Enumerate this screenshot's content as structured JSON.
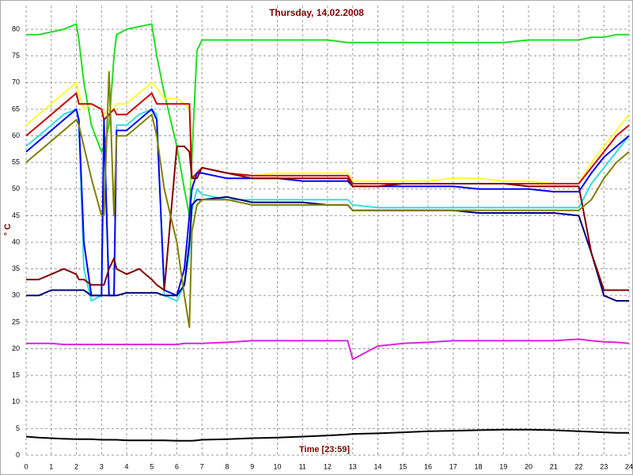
{
  "chart_data": {
    "type": "line",
    "title": "Thursday, 14.02.2008",
    "x_label": "Time [23:59]",
    "y_label": "° C",
    "x": [
      0,
      0.5,
      1,
      1.5,
      2,
      2.1,
      2.3,
      2.6,
      3,
      3.1,
      3.3,
      3.5,
      3.6,
      4,
      4.5,
      5,
      5.2,
      5.5,
      6,
      6.3,
      6.5,
      6.6,
      6.8,
      7,
      8,
      9,
      10,
      11,
      12,
      12.8,
      13,
      14,
      15,
      16,
      17,
      18,
      19,
      20,
      21,
      22,
      22.5,
      23,
      23.5,
      24
    ],
    "series": [
      {
        "color": "#22dd22",
        "values": [
          79,
          79,
          79.5,
          80,
          81,
          78,
          70,
          62,
          57,
          58,
          62,
          75,
          79,
          80,
          80.5,
          81,
          75,
          68,
          58,
          50,
          45,
          56,
          76,
          78,
          78,
          78,
          78,
          78,
          78,
          77.5,
          77.5,
          77.5,
          77.5,
          77.5,
          77.5,
          77.5,
          77.5,
          78,
          78,
          78,
          78.5,
          78.5,
          79,
          79
        ]
      },
      {
        "color": "#ffff33",
        "values": [
          62,
          64,
          66,
          68,
          70,
          68,
          65,
          66,
          65,
          64,
          65,
          65,
          66,
          66,
          68,
          70,
          69,
          67,
          67,
          66,
          65,
          50,
          53,
          54,
          53,
          52.5,
          53,
          53,
          53,
          53,
          51.5,
          51.5,
          51.5,
          51.5,
          52,
          52,
          51.5,
          51.5,
          51,
          51,
          55,
          58,
          61,
          64
        ]
      },
      {
        "color": "#cc0000",
        "values": [
          60,
          62,
          64,
          66,
          68,
          66,
          66,
          66,
          65,
          63,
          64,
          65,
          64,
          64,
          66,
          68,
          66,
          66,
          66,
          66,
          66,
          52,
          53,
          54,
          53,
          52.5,
          52.5,
          52.5,
          52.5,
          52.5,
          51,
          51,
          51,
          51,
          51,
          51,
          51,
          51,
          51,
          51,
          54,
          57,
          60,
          62
        ]
      },
      {
        "color": "#33dddd",
        "values": [
          58,
          60,
          62,
          64,
          65,
          62,
          35,
          29,
          30,
          60,
          30,
          30,
          62,
          62,
          64,
          65,
          64,
          30,
          29,
          32,
          38,
          46,
          50,
          49,
          48,
          48,
          48,
          48,
          48,
          48,
          47,
          46.5,
          46.5,
          46.5,
          46.5,
          46.5,
          46.5,
          46.5,
          46.5,
          46.5,
          51,
          54,
          57,
          60
        ]
      },
      {
        "color": "#0000ff",
        "values": [
          57,
          59,
          61,
          63,
          65,
          63,
          40,
          30,
          30,
          63,
          30,
          30,
          61,
          61,
          63,
          65,
          63,
          31,
          30,
          35,
          45,
          50,
          53,
          53,
          52,
          52,
          52,
          51.5,
          51.5,
          51.5,
          50.5,
          50.5,
          50.5,
          50.5,
          50.5,
          50,
          50,
          50,
          49.5,
          49.5,
          53,
          56,
          58,
          60
        ]
      },
      {
        "color": "#000080",
        "values": [
          30,
          30,
          31,
          31,
          31,
          31,
          31,
          30,
          30,
          30,
          30,
          30,
          30,
          30.5,
          30.5,
          30.5,
          30.5,
          30,
          30,
          32,
          40,
          47,
          48,
          48,
          48.5,
          47.5,
          47.5,
          47.5,
          47,
          47,
          46,
          46,
          46,
          46,
          46,
          45.5,
          45.5,
          45.5,
          45.5,
          45,
          38,
          30,
          29,
          29
        ]
      },
      {
        "color": "#800000",
        "values": [
          33,
          33,
          34,
          35,
          34,
          33,
          33,
          32,
          32,
          32,
          35,
          37,
          35,
          34,
          35,
          33,
          32,
          31,
          58,
          58,
          57,
          52,
          52,
          54,
          53,
          52,
          52,
          52,
          52,
          52,
          50.5,
          50.5,
          51,
          51,
          51,
          51,
          51,
          50.5,
          50.5,
          50.5,
          38,
          31,
          31,
          31
        ]
      },
      {
        "color": "#808000",
        "values": [
          55,
          57,
          59,
          61,
          63,
          62,
          58,
          52,
          45,
          45,
          72,
          45,
          60,
          60,
          62,
          64,
          60,
          50,
          40,
          30,
          24,
          42,
          47,
          48,
          48,
          47,
          47,
          47,
          47,
          47,
          46,
          46,
          46,
          46,
          46,
          46,
          46,
          46,
          46,
          46,
          48,
          52,
          55,
          57
        ]
      },
      {
        "color": "#dd22dd",
        "values": [
          21,
          21,
          21,
          20.8,
          20.8,
          20.8,
          20.8,
          20.8,
          20.8,
          20.8,
          20.8,
          20.8,
          20.8,
          20.8,
          20.8,
          20.8,
          20.8,
          20.8,
          20.8,
          21,
          21,
          21,
          21,
          21,
          21.2,
          21.5,
          21.5,
          21.5,
          21.5,
          21.5,
          18,
          20.5,
          21,
          21.2,
          21.5,
          21.5,
          21.5,
          21.5,
          21.5,
          21.8,
          21.5,
          21.3,
          21.2,
          21
        ]
      },
      {
        "color": "#000000",
        "values": [
          3.5,
          3.3,
          3.2,
          3.1,
          3,
          3,
          3,
          3,
          2.9,
          2.9,
          2.9,
          2.9,
          2.9,
          2.8,
          2.8,
          2.8,
          2.8,
          2.8,
          2.7,
          2.7,
          2.7,
          2.7,
          2.8,
          2.9,
          3,
          3.2,
          3.3,
          3.5,
          3.7,
          3.9,
          4,
          4.1,
          4.3,
          4.5,
          4.6,
          4.7,
          4.8,
          4.8,
          4.7,
          4.5,
          4.4,
          4.3,
          4.2,
          4.2
        ]
      }
    ],
    "xlim": [
      0,
      24
    ],
    "xticks": [
      0,
      1,
      2,
      3,
      4,
      5,
      6,
      7,
      8,
      9,
      10,
      11,
      12,
      13,
      14,
      15,
      16,
      17,
      18,
      19,
      20,
      21,
      22,
      23,
      24
    ],
    "ylim": [
      0,
      80
    ],
    "yticks": [
      0,
      5,
      10,
      15,
      20,
      25,
      30,
      35,
      40,
      45,
      50,
      55,
      60,
      65,
      70,
      75,
      80
    ],
    "grid": true
  }
}
